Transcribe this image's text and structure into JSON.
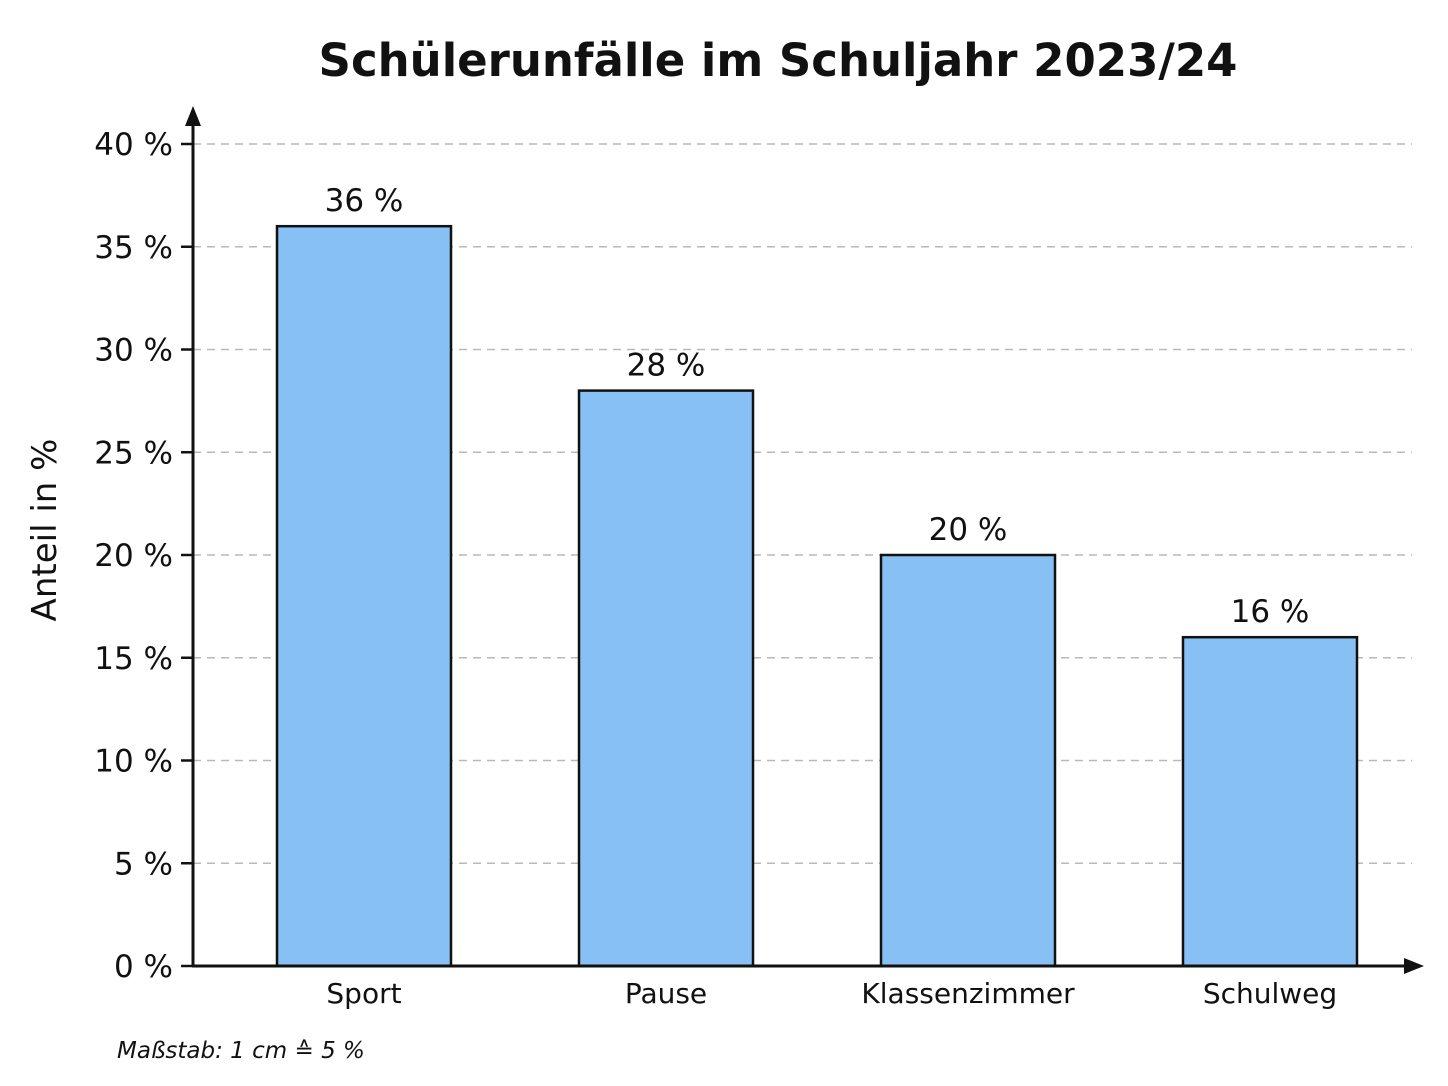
{
  "chart_data": {
    "type": "bar",
    "title": "Schülerunfälle im Schuljahr 2023/24",
    "xlabel": "",
    "ylabel": "Anteil in %",
    "categories": [
      "Sport",
      "Pause",
      "Klassenzimmer",
      "Schulweg"
    ],
    "values": [
      36,
      28,
      20,
      16
    ],
    "value_labels": [
      "36 %",
      "28 %",
      "20 %",
      "16 %"
    ],
    "ylim": [
      0,
      40
    ],
    "y_ticks": [
      0,
      5,
      10,
      15,
      20,
      25,
      30,
      35,
      40
    ],
    "y_tick_labels": [
      "0 %",
      "5 %",
      "10 %",
      "15 %",
      "20 %",
      "25 %",
      "30 %",
      "35 %",
      "40 %"
    ],
    "grid": true,
    "grid_style": "dashed",
    "legend": "none",
    "bar_color": "#87c0f5",
    "bar_edge_color": "#111111",
    "note": "Maßstab: 1 cm ≙ 5 %"
  }
}
